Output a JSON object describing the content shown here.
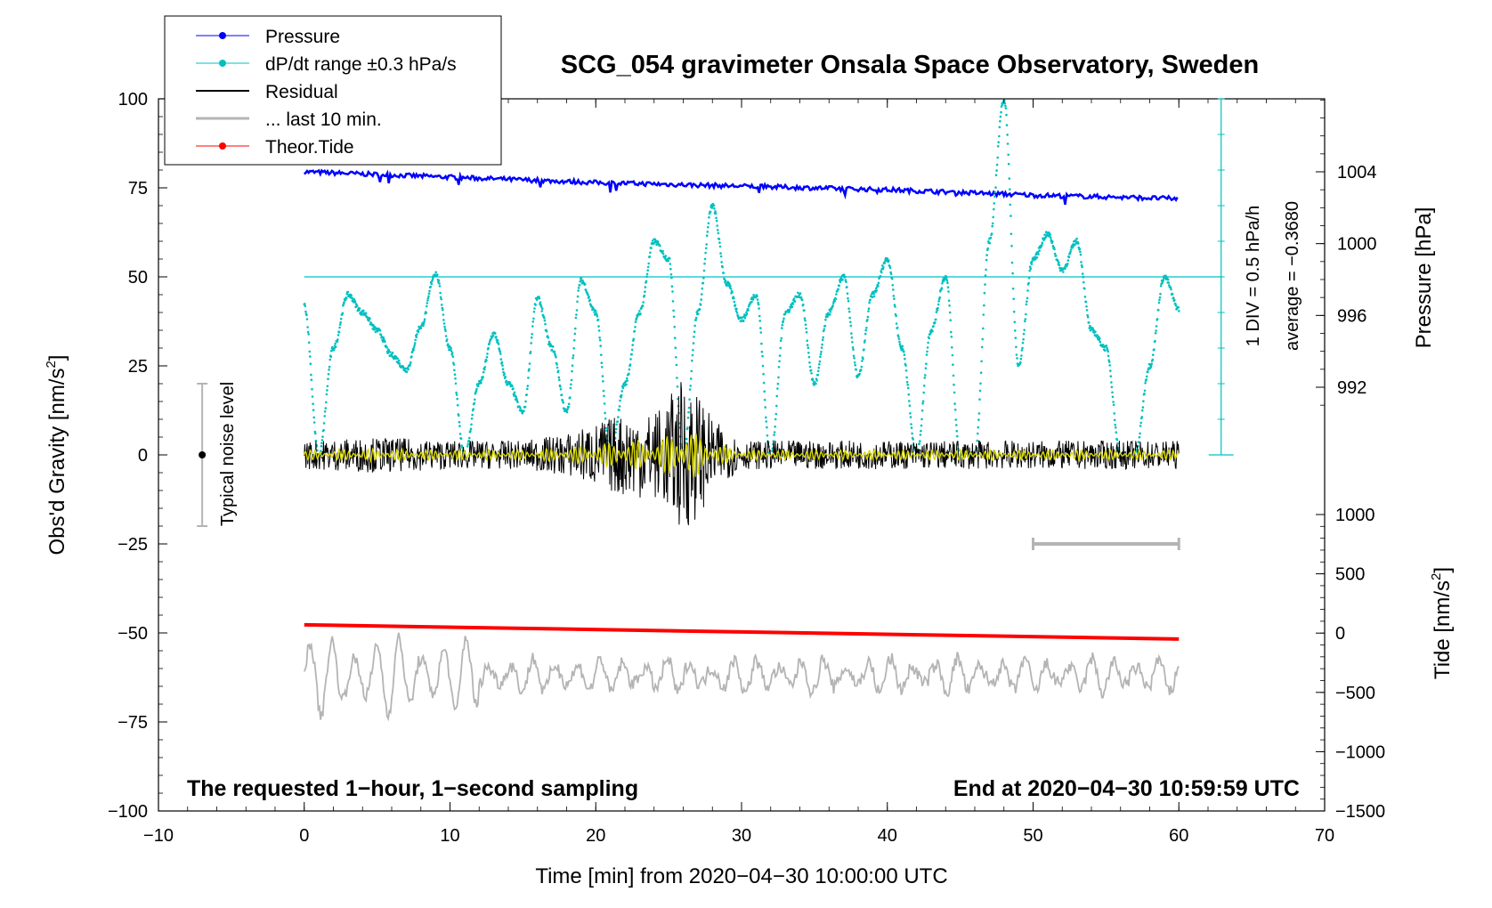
{
  "chart_data": {
    "type": "line",
    "title": "SCG_054 gravimeter Onsala Space Observatory, Sweden",
    "xlabel": "Time [min] from 2020−04−30 10:00:00 UTC",
    "ylabel_left": "Obs'd Gravity [nm/s",
    "ylabel_left_sup": "2",
    "ylabel_left_end": "]",
    "ylabel_pressure": "Pressure [hPa]",
    "ylabel_tide": "Tide [nm/s",
    "ylabel_tide_sup": "2",
    "ylabel_tide_end": "]",
    "xlim": [
      -10,
      70
    ],
    "ylim": [
      -100,
      100
    ],
    "pressure_lim": [
      990,
      1008
    ],
    "tide_lim": [
      -1500,
      1000
    ],
    "x_ticks": [
      "−10",
      "0",
      "10",
      "20",
      "30",
      "40",
      "50",
      "60",
      "70"
    ],
    "y_ticks": [
      "−100",
      "−75",
      "−50",
      "−25",
      "0",
      "25",
      "50",
      "75",
      "100"
    ],
    "pressure_ticks": [
      "992",
      "996",
      "1000",
      "1004"
    ],
    "tide_ticks": [
      "−1500",
      "−1000",
      "−500",
      "0",
      "500",
      "1000"
    ],
    "legend": {
      "position": "top-left",
      "entries": [
        {
          "label": "Pressure",
          "color": "#0000ff",
          "marker": true
        },
        {
          "label": "dP/dt range ±0.3 hPa/s",
          "color": "#00c0c0",
          "marker": true
        },
        {
          "label": "Residual",
          "color": "#000000",
          "marker": false
        },
        {
          "label": "... last 10 min.",
          "color": "#b4b4b4",
          "marker": false
        },
        {
          "label": "Theor.Tide",
          "color": "#ff0000",
          "marker": true
        }
      ]
    },
    "annotations": {
      "noise_label": "Typical noise level",
      "noise_range": [
        -20,
        20
      ],
      "div_label": "1 DIV = 0.5 hPa/h",
      "average_label": "average = −0.3680",
      "bottom_left": "The requested 1−hour, 1−second sampling",
      "bottom_right": "End at 2020−04−30 10:59:59 UTC",
      "last10_bar": [
        50,
        60
      ]
    },
    "series": [
      {
        "name": "Pressure",
        "color": "#0000ff",
        "axis": "pressure",
        "x": [
          0,
          10,
          20,
          30,
          40,
          50,
          60
        ],
        "values": [
          1004.0,
          1003.7,
          1003.4,
          1003.2,
          1003.0,
          1002.7,
          1002.5
        ]
      },
      {
        "name": "dP/dt",
        "color": "#00c0c0",
        "axis": "left",
        "x": [
          0,
          1,
          2,
          3,
          4,
          5,
          6,
          7,
          8,
          9,
          10,
          11,
          12,
          13,
          14,
          15,
          16,
          17,
          18,
          19,
          20,
          21,
          22,
          23,
          24,
          25,
          26,
          27,
          28,
          29,
          30,
          31,
          32,
          33,
          34,
          35,
          36,
          37,
          38,
          39,
          40,
          41,
          42,
          43,
          44,
          45,
          46,
          47,
          48,
          49,
          50,
          51,
          52,
          53,
          54,
          55,
          56,
          57,
          58,
          59,
          60
        ],
        "values": [
          42,
          0,
          30,
          45,
          40,
          35,
          28,
          24,
          36,
          51,
          30,
          0,
          20,
          34,
          20,
          12,
          44,
          30,
          12,
          49,
          40,
          0,
          20,
          40,
          60,
          55,
          0,
          40,
          70,
          48,
          38,
          45,
          0,
          40,
          45,
          20,
          40,
          50,
          22,
          45,
          55,
          30,
          0,
          35,
          50,
          0,
          0,
          60,
          100,
          25,
          55,
          62,
          52,
          60,
          35,
          30,
          0,
          0,
          25,
          50,
          41
        ]
      },
      {
        "name": "Residual",
        "color": "#000000",
        "axis": "left",
        "envelope_x": [
          0,
          5,
          10,
          15,
          18,
          20,
          22,
          24,
          25,
          26,
          27,
          28,
          30,
          35,
          40,
          45,
          50,
          55,
          60
        ],
        "envelope_amp": [
          4,
          5,
          4,
          4,
          6,
          9,
          12,
          12,
          16,
          22,
          18,
          10,
          4,
          4,
          4,
          4,
          4,
          4,
          4
        ]
      },
      {
        "name": "... last 10 min.",
        "color": "#b4b4b4",
        "axis": "left",
        "x_range": [
          0,
          60
        ],
        "values_center": -62,
        "amplitude_range": [
          -84,
          -43
        ]
      },
      {
        "name": "Theor.Tide",
        "color": "#ff0000",
        "axis": "tide",
        "x": [
          0,
          60
        ],
        "values": [
          70,
          -50
        ]
      }
    ]
  }
}
